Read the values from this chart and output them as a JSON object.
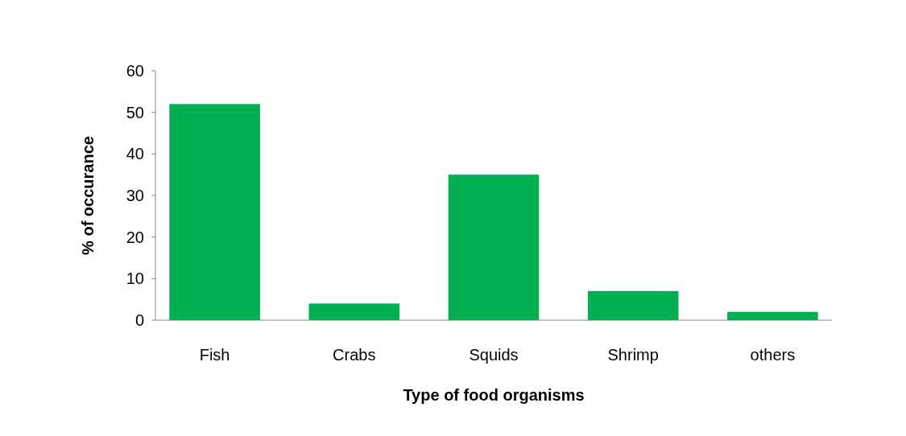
{
  "chart_data": {
    "type": "bar",
    "xlabel": "Type of food organisms",
    "ylabel": "% of occurance",
    "categories": [
      "Fish",
      "Crabs",
      "Squids",
      "Shrimp",
      "others"
    ],
    "values": [
      52,
      4,
      35,
      7,
      2
    ],
    "color": "#00b050",
    "ylim": [
      0,
      60
    ],
    "yticks": [
      0,
      10,
      20,
      30,
      40,
      50,
      60
    ],
    "grid": false
  }
}
